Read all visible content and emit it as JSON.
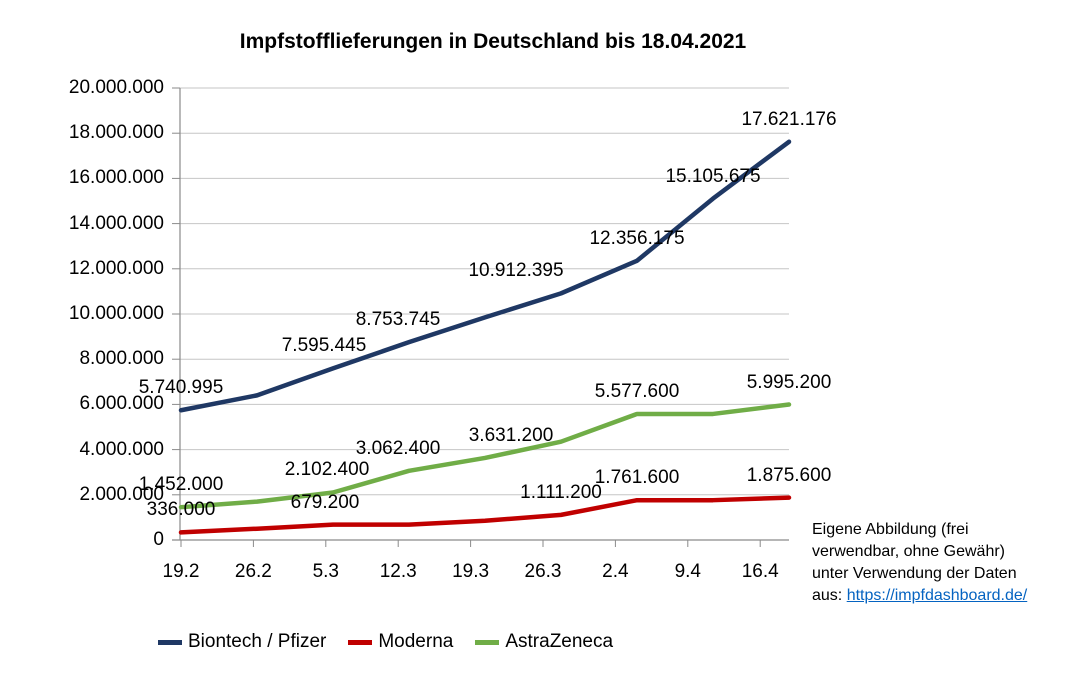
{
  "chart_data": {
    "type": "line",
    "title": "Impfstofflieferungen in Deutschland bis 18.04.2021",
    "categories": [
      "19.2",
      "26.2",
      "5.3",
      "12.3",
      "19.3",
      "26.3",
      "2.4",
      "9.4",
      "16.4"
    ],
    "xlabel": "",
    "ylabel": "",
    "ylim": [
      0,
      20000000
    ],
    "ytick_step": 2000000,
    "ytick_labels": [
      "0",
      "2.000.000",
      "4.000.000",
      "6.000.000",
      "8.000.000",
      "10.000.000",
      "12.000.000",
      "14.000.000",
      "16.000.000",
      "18.000.000",
      "20.000.000"
    ],
    "grid": true,
    "legend_position": "bottom",
    "colors": {
      "gridline": "#c6c6c6",
      "axis": "#8a8a8a",
      "text": "#000000",
      "link": "#0563c1"
    },
    "series": [
      {
        "name": "Biontech / Pfizer",
        "color": "#1f3864",
        "values": [
          5740995,
          6400000,
          7595445,
          8753745,
          9850000,
          10912395,
          12356175,
          15105675,
          17621176
        ],
        "labeled_points": [
          {
            "i": 0,
            "text": "5.740.995"
          },
          {
            "i": 2,
            "dx": -9,
            "text": "7.595.445"
          },
          {
            "i": 3,
            "dx": -11,
            "text": "8.753.745"
          },
          {
            "i": 5,
            "dx": -45,
            "text": "10.912.395"
          },
          {
            "i": 6,
            "text": "12.356.175"
          },
          {
            "i": 7,
            "text": "15.105.675"
          },
          {
            "i": 8,
            "text": "17.621.176"
          }
        ]
      },
      {
        "name": "Moderna",
        "color": "#c00000",
        "values": [
          336000,
          500000,
          679200,
          679200,
          850000,
          1111200,
          1761600,
          1761600,
          1875600
        ],
        "labeled_points": [
          {
            "i": 0,
            "text": "336.000"
          },
          {
            "i": 2,
            "dx": -8,
            "text": "679.200"
          },
          {
            "i": 5,
            "text": "1.111.200"
          },
          {
            "i": 6,
            "text": "1.761.600"
          },
          {
            "i": 8,
            "text": "1.875.600"
          }
        ]
      },
      {
        "name": "AstraZeneca",
        "color": "#70ad47",
        "values": [
          1452000,
          1700000,
          2102400,
          3062400,
          3631200,
          4350000,
          5577600,
          5577600,
          5995200
        ],
        "labeled_points": [
          {
            "i": 0,
            "text": "1.452.000"
          },
          {
            "i": 2,
            "dx": -6,
            "text": "2.102.400"
          },
          {
            "i": 3,
            "dx": -11,
            "text": "3.062.400"
          },
          {
            "i": 4,
            "dx": 26,
            "text": "3.631.200"
          },
          {
            "i": 6,
            "text": "5.577.600"
          },
          {
            "i": 8,
            "text": "5.995.200"
          }
        ]
      }
    ]
  },
  "source_note": {
    "lines": [
      "Eigene Abbildung (frei",
      "verwendbar, ohne Gewähr)",
      "unter Verwendung der Daten"
    ],
    "link_prefix": "aus: ",
    "link_text": "https://impfdashboard.de/"
  }
}
